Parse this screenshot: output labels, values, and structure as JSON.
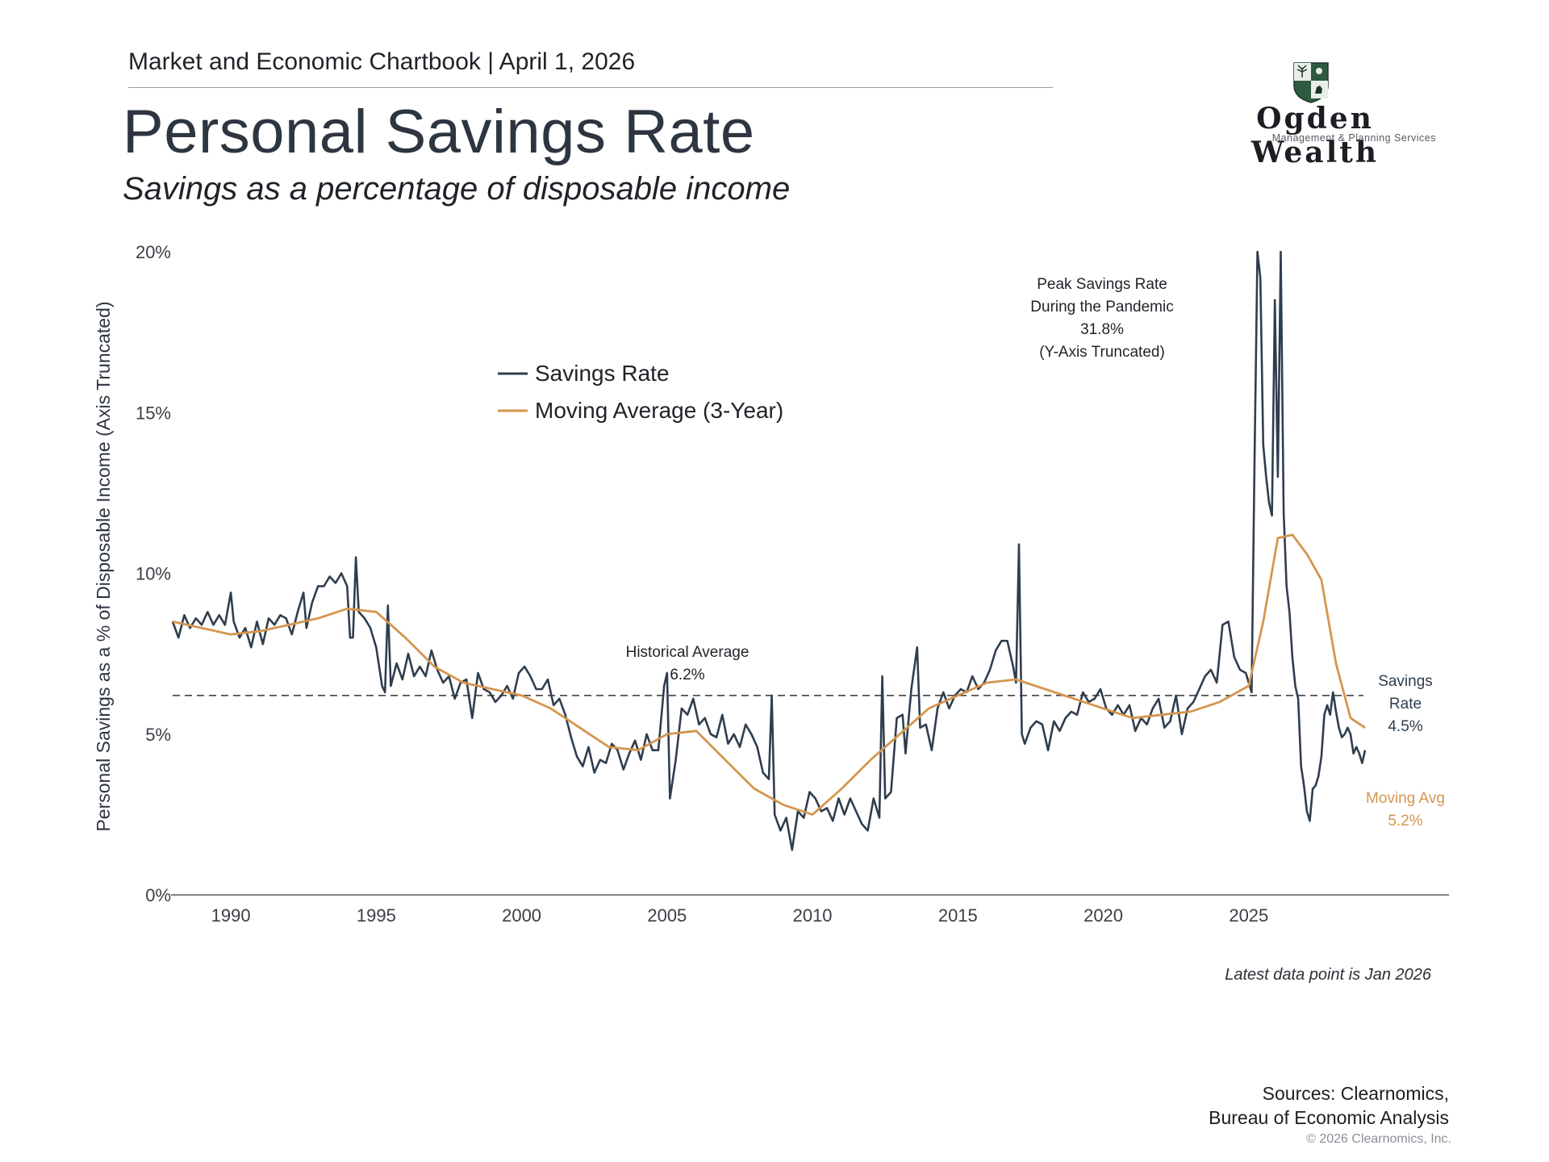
{
  "header": {
    "chartbook_line": "Market and Economic Chartbook | April 1, 2026"
  },
  "title": "Personal Savings Rate",
  "subtitle": "Savings as a percentage of disposable income",
  "logo": {
    "name": "Ogden Wealth",
    "tagline": "Management & Planning Services"
  },
  "footer": {
    "latest_note": "Latest data point is Jan 2026",
    "sources_line1": "Sources: Clearnomics,",
    "sources_line2": "Bureau of Economic Analysis",
    "copyright": "© 2026 Clearnomics, Inc."
  },
  "colors": {
    "savings": "#2f3e4e",
    "moving_avg": "#d4964f",
    "text_dark": "#2d3540",
    "grid": "#333333"
  },
  "chart_data": {
    "type": "line",
    "ylabel": "Personal Savings as a % of Disposable Income (Axis Truncated)",
    "xlabel": "",
    "xlim": [
      1988,
      2029
    ],
    "ylim": [
      0,
      20
    ],
    "x_ticks": [
      1990,
      1995,
      2000,
      2005,
      2010,
      2015,
      2020,
      2025
    ],
    "y_ticks": [
      0,
      5,
      10,
      15,
      20
    ],
    "y_tick_labels": [
      "0%",
      "5%",
      "10%",
      "15%",
      "20%"
    ],
    "legend": {
      "position": "top-left",
      "entries": [
        "Savings Rate",
        "Moving Average (3-Year)"
      ]
    },
    "reference_line": {
      "value": 6.2,
      "style": "dashed"
    },
    "series": [
      {
        "name": "Savings Rate",
        "color": "#2f3e4e",
        "points": [
          [
            1988.0,
            8.5
          ],
          [
            1988.2,
            8.0
          ],
          [
            1988.4,
            8.7
          ],
          [
            1988.6,
            8.3
          ],
          [
            1988.8,
            8.6
          ],
          [
            1989.0,
            8.4
          ],
          [
            1989.2,
            8.8
          ],
          [
            1989.4,
            8.4
          ],
          [
            1989.6,
            8.7
          ],
          [
            1989.8,
            8.4
          ],
          [
            1990.0,
            9.4
          ],
          [
            1990.1,
            8.5
          ],
          [
            1990.3,
            8.0
          ],
          [
            1990.5,
            8.3
          ],
          [
            1990.7,
            7.7
          ],
          [
            1990.9,
            8.5
          ],
          [
            1991.1,
            7.8
          ],
          [
            1991.3,
            8.6
          ],
          [
            1991.5,
            8.4
          ],
          [
            1991.7,
            8.7
          ],
          [
            1991.9,
            8.6
          ],
          [
            1992.1,
            8.1
          ],
          [
            1992.3,
            8.8
          ],
          [
            1992.5,
            9.4
          ],
          [
            1992.6,
            8.3
          ],
          [
            1992.8,
            9.1
          ],
          [
            1993.0,
            9.6
          ],
          [
            1993.2,
            9.6
          ],
          [
            1993.4,
            9.9
          ],
          [
            1993.6,
            9.7
          ],
          [
            1993.8,
            10.0
          ],
          [
            1994.0,
            9.6
          ],
          [
            1994.1,
            8.0
          ],
          [
            1994.2,
            8.0
          ],
          [
            1994.3,
            10.5
          ],
          [
            1994.4,
            8.8
          ],
          [
            1994.6,
            8.6
          ],
          [
            1994.8,
            8.3
          ],
          [
            1995.0,
            7.7
          ],
          [
            1995.2,
            6.5
          ],
          [
            1995.3,
            6.3
          ],
          [
            1995.4,
            9.0
          ],
          [
            1995.5,
            6.5
          ],
          [
            1995.7,
            7.2
          ],
          [
            1995.9,
            6.7
          ],
          [
            1996.1,
            7.5
          ],
          [
            1996.3,
            6.8
          ],
          [
            1996.5,
            7.1
          ],
          [
            1996.7,
            6.8
          ],
          [
            1996.9,
            7.6
          ],
          [
            1997.1,
            7.0
          ],
          [
            1997.3,
            6.6
          ],
          [
            1997.5,
            6.8
          ],
          [
            1997.7,
            6.1
          ],
          [
            1997.9,
            6.6
          ],
          [
            1998.1,
            6.7
          ],
          [
            1998.3,
            5.5
          ],
          [
            1998.5,
            6.9
          ],
          [
            1998.7,
            6.4
          ],
          [
            1998.9,
            6.3
          ],
          [
            1999.1,
            6.0
          ],
          [
            1999.3,
            6.2
          ],
          [
            1999.5,
            6.5
          ],
          [
            1999.7,
            6.1
          ],
          [
            1999.9,
            6.9
          ],
          [
            2000.1,
            7.1
          ],
          [
            2000.3,
            6.8
          ],
          [
            2000.5,
            6.4
          ],
          [
            2000.7,
            6.4
          ],
          [
            2000.9,
            6.7
          ],
          [
            2001.1,
            5.9
          ],
          [
            2001.3,
            6.1
          ],
          [
            2001.5,
            5.6
          ],
          [
            2001.7,
            4.9
          ],
          [
            2001.9,
            4.3
          ],
          [
            2002.1,
            4.0
          ],
          [
            2002.3,
            4.6
          ],
          [
            2002.5,
            3.8
          ],
          [
            2002.7,
            4.2
          ],
          [
            2002.9,
            4.1
          ],
          [
            2003.1,
            4.7
          ],
          [
            2003.3,
            4.5
          ],
          [
            2003.5,
            3.9
          ],
          [
            2003.7,
            4.4
          ],
          [
            2003.9,
            4.8
          ],
          [
            2004.1,
            4.2
          ],
          [
            2004.3,
            5.0
          ],
          [
            2004.5,
            4.5
          ],
          [
            2004.7,
            4.5
          ],
          [
            2004.9,
            6.5
          ],
          [
            2005.0,
            6.9
          ],
          [
            2005.1,
            3.0
          ],
          [
            2005.3,
            4.2
          ],
          [
            2005.5,
            5.8
          ],
          [
            2005.7,
            5.6
          ],
          [
            2005.9,
            6.1
          ],
          [
            2006.1,
            5.3
          ],
          [
            2006.3,
            5.5
          ],
          [
            2006.5,
            5.0
          ],
          [
            2006.7,
            4.9
          ],
          [
            2006.9,
            5.6
          ],
          [
            2007.1,
            4.7
          ],
          [
            2007.3,
            5.0
          ],
          [
            2007.5,
            4.6
          ],
          [
            2007.7,
            5.3
          ],
          [
            2007.9,
            5.0
          ],
          [
            2008.1,
            4.6
          ],
          [
            2008.3,
            3.8
          ],
          [
            2008.5,
            3.6
          ],
          [
            2008.6,
            6.2
          ],
          [
            2008.7,
            2.5
          ],
          [
            2008.9,
            2.0
          ],
          [
            2009.1,
            2.4
          ],
          [
            2009.3,
            1.4
          ],
          [
            2009.5,
            2.6
          ],
          [
            2009.7,
            2.4
          ],
          [
            2009.9,
            3.2
          ],
          [
            2010.1,
            3.0
          ],
          [
            2010.3,
            2.6
          ],
          [
            2010.5,
            2.7
          ],
          [
            2010.7,
            2.3
          ],
          [
            2010.9,
            3.0
          ],
          [
            2011.1,
            2.5
          ],
          [
            2011.3,
            3.0
          ],
          [
            2011.5,
            2.6
          ],
          [
            2011.7,
            2.2
          ],
          [
            2011.9,
            2.0
          ],
          [
            2012.1,
            3.0
          ],
          [
            2012.3,
            2.4
          ],
          [
            2012.4,
            6.8
          ],
          [
            2012.5,
            3.0
          ],
          [
            2012.7,
            3.2
          ],
          [
            2012.9,
            5.5
          ],
          [
            2013.1,
            5.6
          ],
          [
            2013.2,
            4.4
          ],
          [
            2013.4,
            6.4
          ],
          [
            2013.6,
            7.7
          ],
          [
            2013.7,
            5.2
          ],
          [
            2013.9,
            5.3
          ],
          [
            2014.1,
            4.5
          ],
          [
            2014.3,
            5.8
          ],
          [
            2014.5,
            6.3
          ],
          [
            2014.7,
            5.8
          ],
          [
            2014.9,
            6.2
          ],
          [
            2015.1,
            6.4
          ],
          [
            2015.3,
            6.3
          ],
          [
            2015.5,
            6.8
          ],
          [
            2015.7,
            6.4
          ],
          [
            2015.9,
            6.6
          ],
          [
            2016.1,
            7.0
          ],
          [
            2016.3,
            7.6
          ],
          [
            2016.5,
            7.9
          ],
          [
            2016.7,
            7.9
          ],
          [
            2016.9,
            7.1
          ],
          [
            2017.0,
            6.6
          ],
          [
            2017.1,
            10.9
          ],
          [
            2017.2,
            5.0
          ],
          [
            2017.3,
            4.7
          ],
          [
            2017.5,
            5.2
          ],
          [
            2017.7,
            5.4
          ],
          [
            2017.9,
            5.3
          ],
          [
            2018.1,
            4.5
          ],
          [
            2018.3,
            5.4
          ],
          [
            2018.5,
            5.1
          ],
          [
            2018.7,
            5.5
          ],
          [
            2018.9,
            5.7
          ],
          [
            2019.1,
            5.6
          ],
          [
            2019.3,
            6.3
          ],
          [
            2019.5,
            6.0
          ],
          [
            2019.7,
            6.1
          ],
          [
            2019.9,
            6.4
          ],
          [
            2020.1,
            5.8
          ],
          [
            2020.3,
            5.6
          ],
          [
            2020.5,
            5.9
          ],
          [
            2020.7,
            5.6
          ],
          [
            2020.9,
            5.9
          ],
          [
            2021.1,
            5.1
          ],
          [
            2021.3,
            5.5
          ],
          [
            2021.5,
            5.3
          ],
          [
            2021.7,
            5.8
          ],
          [
            2021.9,
            6.1
          ],
          [
            2022.1,
            5.2
          ],
          [
            2022.3,
            5.4
          ],
          [
            2022.5,
            6.2
          ],
          [
            2022.7,
            5.0
          ],
          [
            2022.9,
            5.8
          ],
          [
            2023.1,
            6.0
          ],
          [
            2023.3,
            6.4
          ],
          [
            2023.5,
            6.8
          ],
          [
            2023.7,
            7.0
          ],
          [
            2023.9,
            6.6
          ],
          [
            2024.1,
            8.4
          ],
          [
            2024.3,
            8.5
          ],
          [
            2024.5,
            7.4
          ],
          [
            2024.7,
            7.0
          ],
          [
            2024.9,
            6.9
          ],
          [
            2025.0,
            6.6
          ],
          [
            2025.1,
            6.3
          ],
          [
            2025.2,
            13.5
          ],
          [
            2025.3,
            33.0
          ],
          [
            2025.4,
            19.2
          ],
          [
            2025.5,
            14.0
          ],
          [
            2025.6,
            13.0
          ],
          [
            2025.7,
            12.2
          ],
          [
            2025.8,
            11.8
          ],
          [
            2025.9,
            18.5
          ],
          [
            2026.0,
            13.0
          ],
          [
            2026.1,
            26.0
          ],
          [
            2026.2,
            11.9
          ],
          [
            2026.3,
            9.6
          ],
          [
            2026.4,
            8.8
          ],
          [
            2026.5,
            7.4
          ],
          [
            2026.6,
            6.5
          ],
          [
            2026.7,
            6.1
          ],
          [
            2026.8,
            4.0
          ],
          [
            2026.9,
            3.4
          ],
          [
            2027.0,
            2.6
          ],
          [
            2027.1,
            2.3
          ],
          [
            2027.2,
            3.3
          ],
          [
            2027.3,
            3.4
          ],
          [
            2027.4,
            3.7
          ],
          [
            2027.5,
            4.3
          ],
          [
            2027.6,
            5.6
          ],
          [
            2027.7,
            5.9
          ],
          [
            2027.8,
            5.6
          ],
          [
            2027.9,
            6.3
          ],
          [
            2028.0,
            5.7
          ],
          [
            2028.1,
            5.2
          ],
          [
            2028.2,
            4.9
          ],
          [
            2028.3,
            5.0
          ],
          [
            2028.4,
            5.2
          ],
          [
            2028.5,
            5.0
          ],
          [
            2028.6,
            4.4
          ],
          [
            2028.7,
            4.6
          ],
          [
            2028.8,
            4.4
          ],
          [
            2028.9,
            4.1
          ],
          [
            2029.0,
            4.5
          ]
        ]
      },
      {
        "name": "Moving Average (3-Year)",
        "color": "#d4964f",
        "points": [
          [
            1988.0,
            8.5
          ],
          [
            1989.0,
            8.3
          ],
          [
            1990.0,
            8.1
          ],
          [
            1991.0,
            8.2
          ],
          [
            1992.0,
            8.4
          ],
          [
            1993.0,
            8.6
          ],
          [
            1994.0,
            8.9
          ],
          [
            1995.0,
            8.8
          ],
          [
            1996.0,
            8.0
          ],
          [
            1997.0,
            7.1
          ],
          [
            1998.0,
            6.6
          ],
          [
            1999.0,
            6.4
          ],
          [
            2000.0,
            6.2
          ],
          [
            2001.0,
            5.8
          ],
          [
            2002.0,
            5.2
          ],
          [
            2003.0,
            4.6
          ],
          [
            2004.0,
            4.5
          ],
          [
            2005.0,
            5.0
          ],
          [
            2006.0,
            5.1
          ],
          [
            2007.0,
            4.2
          ],
          [
            2008.0,
            3.3
          ],
          [
            2009.0,
            2.8
          ],
          [
            2010.0,
            2.5
          ],
          [
            2011.0,
            3.3
          ],
          [
            2012.0,
            4.2
          ],
          [
            2013.0,
            5.0
          ],
          [
            2014.0,
            5.8
          ],
          [
            2015.0,
            6.2
          ],
          [
            2016.0,
            6.6
          ],
          [
            2017.0,
            6.7
          ],
          [
            2018.0,
            6.4
          ],
          [
            2019.0,
            6.1
          ],
          [
            2020.0,
            5.8
          ],
          [
            2021.0,
            5.5
          ],
          [
            2022.0,
            5.6
          ],
          [
            2023.0,
            5.7
          ],
          [
            2024.0,
            6.0
          ],
          [
            2025.0,
            6.5
          ],
          [
            2025.5,
            8.5
          ],
          [
            2026.0,
            11.1
          ],
          [
            2026.5,
            11.2
          ],
          [
            2027.0,
            10.6
          ],
          [
            2027.5,
            9.8
          ],
          [
            2028.0,
            7.2
          ],
          [
            2028.5,
            5.5
          ],
          [
            2029.0,
            5.2
          ]
        ]
      }
    ],
    "annotations": {
      "peak": [
        "Peak Savings Rate",
        "During the Pandemic",
        "31.8%",
        "(Y-Axis Truncated)"
      ],
      "historical": [
        "Historical Average",
        "6.2%"
      ],
      "savings_end": [
        "Savings",
        "Rate",
        "4.5%"
      ],
      "moving_end": [
        "Moving Avg",
        "5.2%"
      ]
    }
  }
}
